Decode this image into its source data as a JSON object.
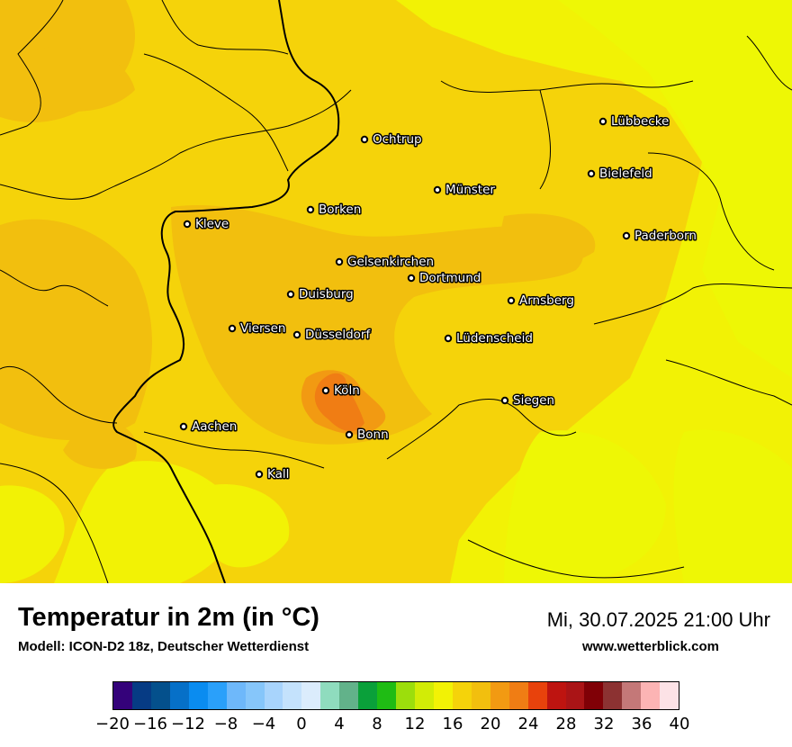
{
  "map": {
    "cities": [
      {
        "name": "Lübbecke"
      },
      {
        "name": "Ochtrup"
      },
      {
        "name": "Bielefeld"
      },
      {
        "name": "Münster"
      },
      {
        "name": "Borken"
      },
      {
        "name": "Kleve"
      },
      {
        "name": "Paderborn"
      },
      {
        "name": "Gelsenkirchen"
      },
      {
        "name": "Dortmund"
      },
      {
        "name": "Duisburg"
      },
      {
        "name": "Arnsberg"
      },
      {
        "name": "Viersen"
      },
      {
        "name": "Düsseldorf"
      },
      {
        "name": "Lüdenscheid"
      },
      {
        "name": "Köln"
      },
      {
        "name": "Siegen"
      },
      {
        "name": "Aachen"
      },
      {
        "name": "Bonn"
      },
      {
        "name": "Kall"
      }
    ],
    "fill_colors": {
      "main": "#f5d30a",
      "warm": "#f2bf0e",
      "warmer": "#f29a12",
      "hot": "#f07d14",
      "cool": "#f2f205",
      "cooler": "#eaf20a"
    }
  },
  "title": "Temperatur in 2m (in °C)",
  "model": "Modell: ICON-D2 18z, Deutscher Wetterdienst",
  "datetime": "Mi, 30.07.2025 21:00 Uhr",
  "website": "www.wetterblick.com",
  "colorbar": {
    "colors": [
      "#34027a",
      "#063b84",
      "#04508c",
      "#0670c8",
      "#0a8cf0",
      "#2aa0fa",
      "#6eb8fa",
      "#86c6fa",
      "#a8d4fc",
      "#c4e2fc",
      "#dbecfc",
      "#8fdcbe",
      "#62b28a",
      "#0aa03a",
      "#1fbc14",
      "#9cde0c",
      "#d2ec06",
      "#f2f205",
      "#f5d30a",
      "#f2bf0e",
      "#f29a12",
      "#f07d14",
      "#e8420c",
      "#be1410",
      "#aa1416",
      "#800006",
      "#8c3232",
      "#c47878",
      "#fcb4b4",
      "#fce2e6"
    ],
    "ticks": [
      "−20",
      "−16",
      "−12",
      "−8",
      "−4",
      "0",
      "4",
      "8",
      "12",
      "16",
      "20",
      "24",
      "28",
      "32",
      "36",
      "40"
    ]
  }
}
